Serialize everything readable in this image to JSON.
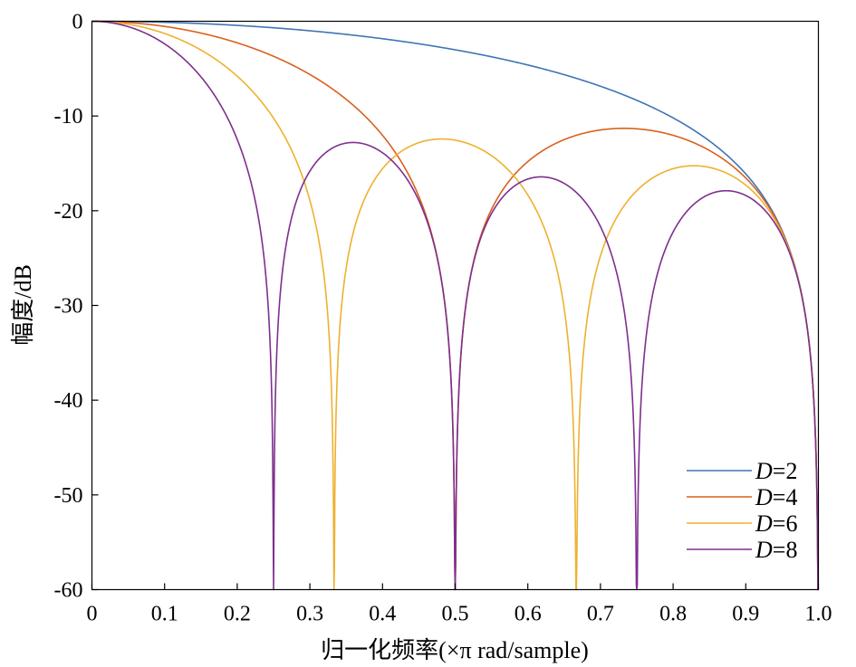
{
  "chart_data": {
    "type": "line",
    "title": "",
    "xlabel": "归一化频率(×π rad/sample)",
    "ylabel": "幅度/dB",
    "xlim": [
      0,
      1.0
    ],
    "ylim": [
      -60,
      0
    ],
    "xticks": [
      0,
      0.1,
      0.2,
      0.3,
      0.4,
      0.5,
      0.6,
      0.7,
      0.8,
      0.9,
      1.0
    ],
    "xtick_labels": [
      "0",
      "0.1",
      "0.2",
      "0.3",
      "0.4",
      "0.5",
      "0.6",
      "0.7",
      "0.8",
      "0.9",
      "1.0"
    ],
    "yticks": [
      0,
      -10,
      -20,
      -30,
      -40,
      -50,
      -60
    ],
    "ytick_labels": [
      "0",
      "-10",
      "-20",
      "-30",
      "-40",
      "-50",
      "-60"
    ],
    "grid": false,
    "legend_position": "bottom-right",
    "series": [
      {
        "name": "D=2",
        "legend_var": "D",
        "legend_value": "=2",
        "D": 2,
        "color": "#3f74b5",
        "x": [
          0,
          0.1,
          0.2,
          0.3,
          0.4,
          0.5,
          0.6,
          0.7,
          0.8,
          0.9,
          0.95,
          1.0
        ],
        "values": [
          0,
          -0.1,
          -0.4,
          -1.0,
          -1.8,
          -3.0,
          -4.7,
          -7.2,
          -11.0,
          -18.0,
          -25.0,
          -60
        ]
      },
      {
        "name": "D=4",
        "legend_var": "D",
        "legend_value": "=4",
        "D": 4,
        "color": "#d9601e",
        "x": [
          0,
          0.1,
          0.2,
          0.3,
          0.4,
          0.5,
          0.6,
          0.73,
          0.9,
          1.0
        ],
        "values": [
          0,
          -0.9,
          -3.8,
          -8.8,
          -17.0,
          -60,
          -18.2,
          -11.3,
          -18.0,
          -60
        ]
      },
      {
        "name": "D=6",
        "legend_var": "D",
        "legend_value": "=6",
        "D": 6,
        "color": "#eeb12f",
        "x": [
          0,
          0.1,
          0.2,
          0.333,
          0.48,
          0.6,
          0.667,
          0.83,
          1.0
        ],
        "values": [
          0,
          -2.2,
          -9.5,
          -60,
          -12.4,
          -21.0,
          -60,
          -15.3,
          -60
        ]
      },
      {
        "name": "D=8",
        "legend_var": "D",
        "legend_value": "=8",
        "D": 8,
        "color": "#7e2f8e",
        "x": [
          0,
          0.1,
          0.25,
          0.36,
          0.5,
          0.62,
          0.75,
          0.87,
          1.0
        ],
        "values": [
          0,
          -4.0,
          -54,
          -12.8,
          -60,
          -16.4,
          -60,
          -17.9,
          -60
        ]
      }
    ]
  }
}
